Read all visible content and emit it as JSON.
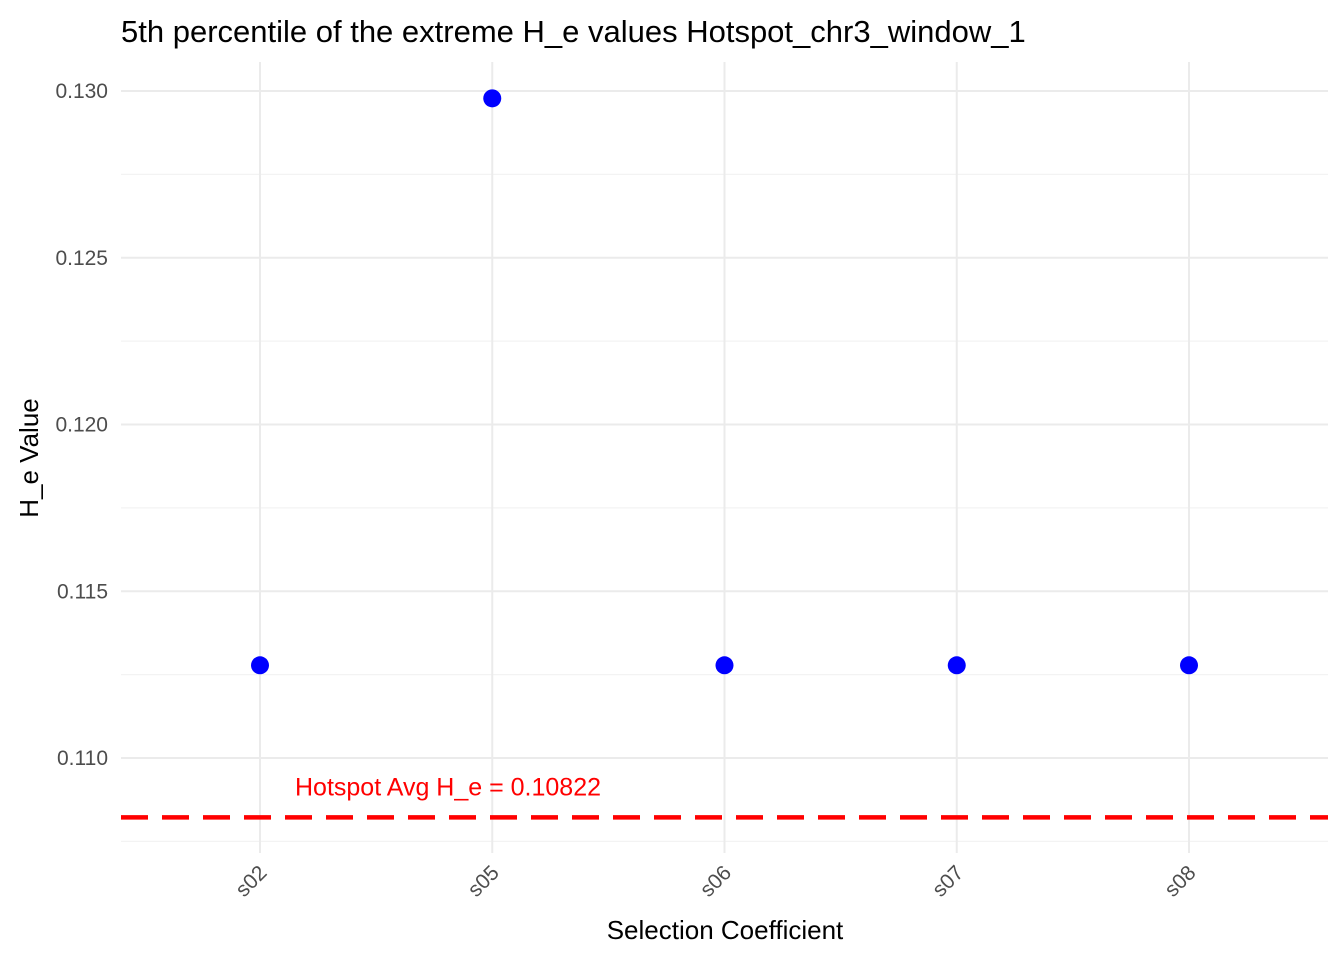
{
  "chart_data": {
    "type": "scatter",
    "title": "5th percentile of the extreme H_e values Hotspot_chr3_window_1",
    "xlabel": "Selection Coefficient",
    "ylabel": "H_e Value",
    "categories": [
      "s02",
      "s05",
      "s06",
      "s07",
      "s08"
    ],
    "values": [
      0.11278,
      0.12978,
      0.11278,
      0.11278,
      0.11278
    ],
    "ylim": [
      0.1074,
      0.1309
    ],
    "yticks": [
      0.11,
      0.115,
      0.12,
      0.125,
      0.13
    ],
    "ytick_labels": [
      "0.110",
      "0.115",
      "0.120",
      "0.125",
      "0.130"
    ],
    "grid": true,
    "point_color": "#0000ff",
    "reference_line": {
      "value": 0.10822,
      "label": "Hotspot Avg H_e = 0.10822",
      "color": "#ff0000",
      "style": "dashed"
    }
  }
}
